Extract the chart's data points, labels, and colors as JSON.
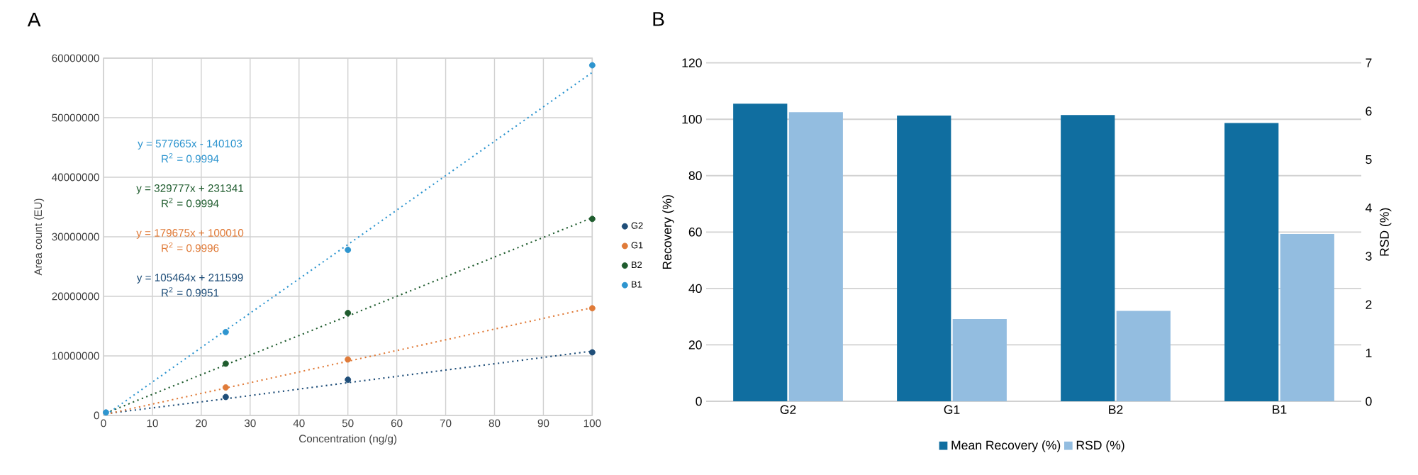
{
  "chart_data": [
    {
      "type": "scatter",
      "title": "A",
      "xlabel": "Concentration (ng/g)",
      "ylabel": "Area count (EU)",
      "x": [
        0.5,
        25,
        50,
        100
      ],
      "xlim": [
        0,
        100
      ],
      "ylim": [
        0,
        60000000
      ],
      "xticks": [
        0,
        10,
        20,
        30,
        40,
        50,
        60,
        70,
        80,
        90,
        100
      ],
      "yticks": [
        0,
        10000000,
        20000000,
        30000000,
        40000000,
        50000000,
        60000000
      ],
      "grid": true,
      "legend": "right",
      "series": [
        {
          "name": "G2",
          "color": "#1f4e79",
          "values": [
            null,
            3100000,
            6000000,
            10600000
          ],
          "marker": "circle"
        },
        {
          "name": "G1",
          "color": "#e07b39",
          "values": [
            null,
            4700000,
            9400000,
            18000000
          ],
          "marker": "circle"
        },
        {
          "name": "B2",
          "color": "#1f5c2e",
          "values": [
            null,
            8700000,
            17200000,
            33000000
          ],
          "marker": "circle"
        },
        {
          "name": "B1",
          "color": "#2e95cf",
          "values": [
            500000,
            14000000,
            27800000,
            58800000
          ],
          "marker": "circle"
        },
        {
          "type": "line",
          "color": "#1f4e79",
          "values": [
            300000,
            2800000,
            5500000,
            10800000
          ],
          "line_style": "dotted",
          "marker": "none"
        },
        {
          "type": "line",
          "color": "#e07b39",
          "values": [
            200000,
            4600000,
            9100000,
            18100000
          ],
          "line_style": "dotted",
          "marker": "none"
        },
        {
          "type": "line",
          "color": "#1f5c2e",
          "values": [
            400000,
            8500000,
            16700000,
            33200000
          ],
          "line_style": "dotted",
          "marker": "none"
        },
        {
          "type": "line",
          "color": "#2e95cf",
          "values": [
            100000,
            14300000,
            28700000,
            57600000
          ],
          "line_style": "dotted",
          "marker": "none"
        }
      ],
      "annotations": [
        "y = 577665x - 140103",
        "R$^{2}$ = 0.9994",
        "y = 329777x + 231341",
        "R$^{2}$ = 0.9994",
        "y = 179675x + 100010",
        "R$^{2}$ = 0.9996",
        "y = 105464x + 211599",
        "R$^{2}$ = 0.9951"
      ]
    },
    {
      "type": "bar",
      "title": "B",
      "ylabel": "Recovery (%)",
      "y2label": "RSD (%)",
      "categories": [
        "G2",
        "G1",
        "B2",
        "B1"
      ],
      "ylim": [
        0,
        120
      ],
      "yticks": [
        0,
        20,
        40,
        60,
        80,
        100,
        120
      ],
      "y2lim": [
        0,
        7
      ],
      "y2ticks": [
        0,
        1,
        2,
        3,
        4,
        5,
        6,
        7
      ],
      "grid": "y",
      "legend": "bottom",
      "series": [
        {
          "name": "Mean Recovery (%)",
          "color": "#106ea0",
          "values": [
            105.5,
            101.3,
            101.5,
            98.7
          ]
        },
        {
          "name": "RSD (%)",
          "color": "#93bde0",
          "values": [
            5.98,
            1.7,
            1.87,
            3.46
          ],
          "axis": "y2"
        }
      ]
    }
  ]
}
